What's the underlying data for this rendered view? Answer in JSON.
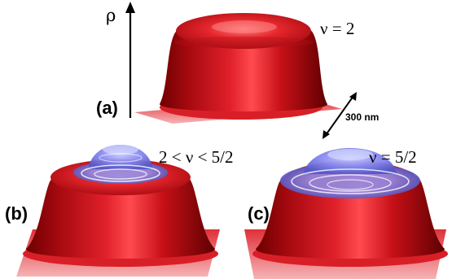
{
  "axis_label": "ρ",
  "panels": [
    {
      "label": "(a)",
      "filling": "ν = 2"
    },
    {
      "label": "(b)",
      "filling": "2 < ν < 5/2"
    },
    {
      "label": "(c)",
      "filling": "ν = 5/2"
    }
  ],
  "scale_bar": "300 nm",
  "colors": {
    "density_surface": "#c8101a",
    "minority_density": "#7d7fe0",
    "background": "#ffffff"
  }
}
